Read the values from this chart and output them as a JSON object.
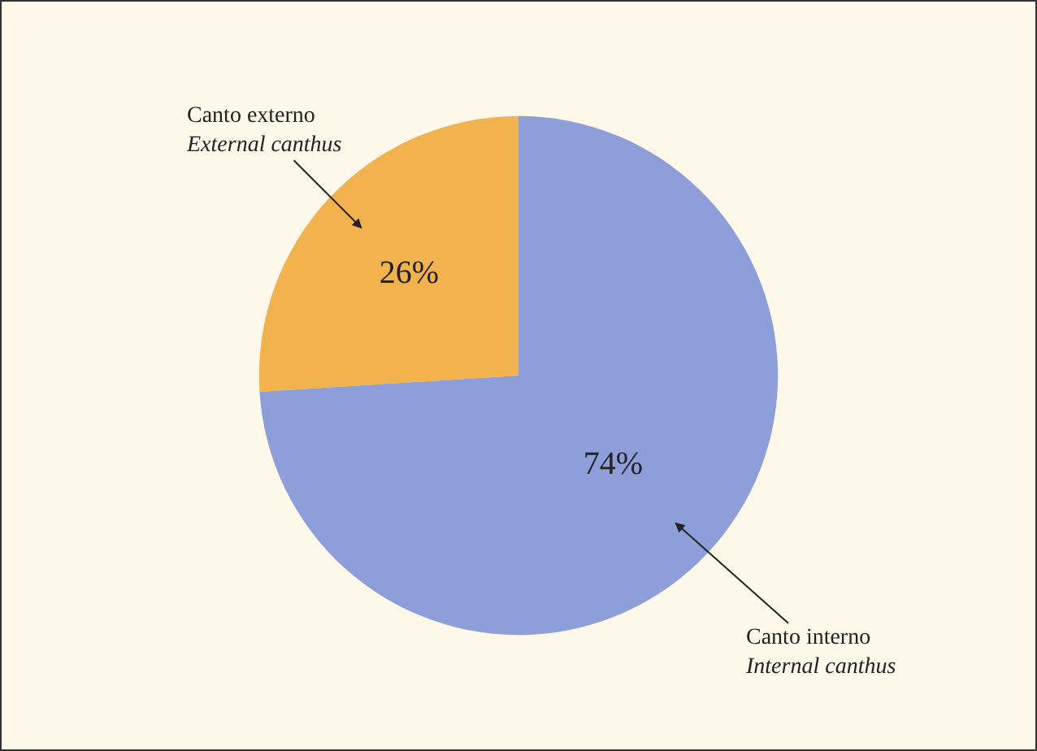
{
  "chart_data": {
    "type": "pie",
    "categories": [
      "Canto externo\nExternal canthus",
      "Canto interno\nInternal canthus"
    ],
    "values": [
      26,
      74
    ],
    "colors": [
      "#f2b24e",
      "#8e9ed8"
    ],
    "value_labels": [
      "26%",
      "74%"
    ],
    "legend": false
  }
}
